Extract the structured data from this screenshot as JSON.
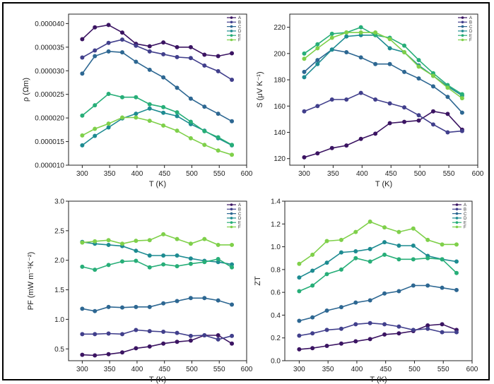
{
  "colors": {
    "A": "#3b1462",
    "B": "#413f8c",
    "C": "#2d6792",
    "D": "#1d8b91",
    "E": "#27ae78",
    "F": "#7fd04a"
  },
  "chart_data": [
    {
      "type": "line",
      "xlabel": "T (K)",
      "ylabel": "ρ (Ωm)",
      "xlim": [
        275,
        600
      ],
      "ylim": [
        1e-05,
        4.2e-05
      ],
      "xticks": [
        "300",
        "350",
        "400",
        "450",
        "500",
        "550",
        "600"
      ],
      "yticks": [
        "0.000010",
        "0.000015",
        "0.000020",
        "0.000025",
        "0.000030",
        "0.000035",
        "0.000040"
      ],
      "legend_position": "top-right",
      "x": [
        300,
        323,
        348,
        373,
        398,
        423,
        448,
        473,
        498,
        523,
        548,
        573
      ],
      "series": [
        {
          "name": "A",
          "values": [
            3.67e-05,
            3.92e-05,
            3.97e-05,
            3.81e-05,
            3.57e-05,
            3.52e-05,
            3.6e-05,
            3.5e-05,
            3.5e-05,
            3.34e-05,
            3.31e-05,
            3.37e-05
          ]
        },
        {
          "name": "B",
          "values": [
            3.28e-05,
            3.43e-05,
            3.59e-05,
            3.66e-05,
            3.53e-05,
            3.41e-05,
            3.35e-05,
            3.29e-05,
            3.27e-05,
            3.11e-05,
            2.99e-05,
            2.81e-05
          ]
        },
        {
          "name": "C",
          "values": [
            2.94e-05,
            3.31e-05,
            3.41e-05,
            3.39e-05,
            3.19e-05,
            3.02e-05,
            2.86e-05,
            2.64e-05,
            2.41e-05,
            2.24e-05,
            2.09e-05,
            1.93e-05
          ]
        },
        {
          "name": "D",
          "values": [
            1.42e-05,
            1.62e-05,
            1.8e-05,
            1.99e-05,
            2.09e-05,
            2.2e-05,
            2.11e-05,
            2.04e-05,
            1.87e-05,
            1.73e-05,
            1.57e-05,
            1.42e-05
          ]
        },
        {
          "name": "E",
          "values": [
            2.05e-05,
            2.27e-05,
            2.51e-05,
            2.44e-05,
            2.44e-05,
            2.29e-05,
            2.23e-05,
            2.12e-05,
            1.92e-05,
            1.72e-05,
            1.59e-05,
            1.43e-05
          ]
        },
        {
          "name": "F",
          "values": [
            1.63e-05,
            1.77e-05,
            1.88e-05,
            2.01e-05,
            2.01e-05,
            1.94e-05,
            1.84e-05,
            1.73e-05,
            1.57e-05,
            1.43e-05,
            1.31e-05,
            1.22e-05
          ]
        }
      ]
    },
    {
      "type": "line",
      "xlabel": "T (K)",
      "ylabel": "S (μV K⁻¹)",
      "xlim": [
        275,
        600
      ],
      "ylim": [
        115,
        230
      ],
      "xticks": [
        "300",
        "350",
        "400",
        "450",
        "500",
        "550",
        "600"
      ],
      "yticks": [
        "120",
        "140",
        "160",
        "180",
        "200",
        "220"
      ],
      "legend_position": "top-right",
      "x": [
        300,
        323,
        348,
        373,
        398,
        423,
        448,
        473,
        498,
        523,
        548,
        573
      ],
      "series": [
        {
          "name": "A",
          "values": [
            121,
            124,
            128,
            130,
            135,
            139,
            147,
            148,
            149,
            156,
            154,
            142
          ]
        },
        {
          "name": "B",
          "values": [
            156,
            160,
            165,
            165,
            170,
            165,
            162,
            159,
            153,
            146,
            140,
            141
          ]
        },
        {
          "name": "C",
          "values": [
            186,
            195,
            203,
            201,
            197,
            192,
            192,
            186,
            181,
            175,
            167,
            155
          ]
        },
        {
          "name": "D",
          "values": [
            182,
            192,
            203,
            213,
            214,
            214,
            204,
            201,
            191,
            183,
            175,
            168
          ]
        },
        {
          "name": "E",
          "values": [
            200,
            207,
            215,
            216,
            220,
            214,
            212,
            206,
            195,
            185,
            176,
            169
          ]
        },
        {
          "name": "F",
          "values": [
            196,
            204,
            212,
            216,
            216,
            216,
            211,
            201,
            190,
            183,
            174,
            166
          ]
        }
      ]
    },
    {
      "type": "line",
      "xlabel": "T (K)",
      "ylabel": "PF (mW m⁻¹K⁻²)",
      "xlim": [
        275,
        600
      ],
      "ylim": [
        0.3,
        3.0
      ],
      "xticks": [
        "300",
        "350",
        "400",
        "450",
        "500",
        "550",
        "600"
      ],
      "yticks": [
        "0.5",
        "1.0",
        "1.5",
        "2.0",
        "2.5",
        "3.0"
      ],
      "legend_position": "top-right",
      "x": [
        300,
        323,
        348,
        373,
        398,
        423,
        448,
        473,
        498,
        523,
        548,
        573
      ],
      "series": [
        {
          "name": "A",
          "values": [
            0.4,
            0.39,
            0.41,
            0.44,
            0.51,
            0.54,
            0.59,
            0.62,
            0.64,
            0.73,
            0.73,
            0.59
          ]
        },
        {
          "name": "B",
          "values": [
            0.75,
            0.75,
            0.76,
            0.75,
            0.82,
            0.8,
            0.79,
            0.77,
            0.72,
            0.73,
            0.66,
            0.72
          ]
        },
        {
          "name": "C",
          "values": [
            1.18,
            1.14,
            1.21,
            1.2,
            1.21,
            1.21,
            1.27,
            1.31,
            1.36,
            1.36,
            1.32,
            1.25
          ]
        },
        {
          "name": "D",
          "values": [
            2.31,
            2.28,
            2.26,
            2.24,
            2.16,
            2.08,
            2.08,
            2.08,
            2.03,
            1.99,
            1.97,
            1.93
          ]
        },
        {
          "name": "E",
          "values": [
            1.89,
            1.84,
            1.92,
            1.98,
            1.99,
            1.88,
            1.93,
            1.9,
            1.94,
            1.97,
            2.02,
            1.88
          ]
        },
        {
          "name": "F",
          "values": [
            2.3,
            2.32,
            2.34,
            2.28,
            2.33,
            2.34,
            2.44,
            2.36,
            2.28,
            2.36,
            2.26,
            2.26
          ]
        }
      ]
    },
    {
      "type": "line",
      "xlabel": "T (K)",
      "ylabel": "ZT",
      "xlim": [
        275,
        600
      ],
      "ylim": [
        0.0,
        1.4
      ],
      "xticks": [
        "300",
        "350",
        "400",
        "450",
        "500",
        "550",
        "600"
      ],
      "yticks": [
        "0.0",
        "0.2",
        "0.4",
        "0.6",
        "0.8",
        "1.0",
        "1.2",
        "1.4"
      ],
      "legend_position": "top-right",
      "x": [
        300,
        323,
        348,
        373,
        398,
        423,
        448,
        473,
        498,
        523,
        548,
        573
      ],
      "series": [
        {
          "name": "A",
          "values": [
            0.1,
            0.11,
            0.13,
            0.15,
            0.17,
            0.19,
            0.23,
            0.24,
            0.26,
            0.31,
            0.32,
            0.27
          ]
        },
        {
          "name": "B",
          "values": [
            0.22,
            0.24,
            0.27,
            0.28,
            0.32,
            0.33,
            0.32,
            0.3,
            0.27,
            0.28,
            0.25,
            0.25
          ]
        },
        {
          "name": "C",
          "values": [
            0.35,
            0.38,
            0.44,
            0.47,
            0.51,
            0.53,
            0.59,
            0.61,
            0.66,
            0.66,
            0.64,
            0.62
          ]
        },
        {
          "name": "D",
          "values": [
            0.73,
            0.79,
            0.86,
            0.95,
            0.96,
            0.98,
            1.04,
            1.01,
            1.01,
            0.92,
            0.89,
            0.87
          ]
        },
        {
          "name": "E",
          "values": [
            0.61,
            0.66,
            0.76,
            0.8,
            0.9,
            0.87,
            0.93,
            0.89,
            0.89,
            0.9,
            0.89,
            0.77
          ]
        },
        {
          "name": "F",
          "values": [
            0.85,
            0.93,
            1.05,
            1.06,
            1.13,
            1.22,
            1.17,
            1.13,
            1.16,
            1.06,
            1.02,
            1.02
          ]
        }
      ]
    }
  ]
}
